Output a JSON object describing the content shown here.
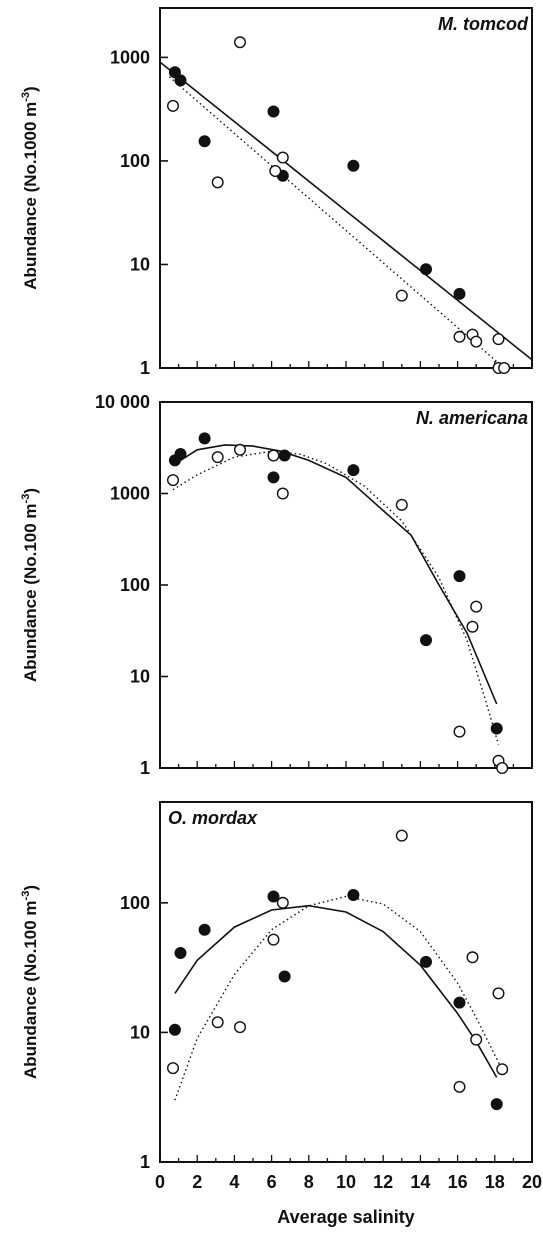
{
  "chart_data": [
    {
      "type": "scatter",
      "title": "M. tomcod",
      "ylabel": "Abundance (No.1000 m",
      "ylabel_sup": "-3",
      "ylabel_close": ")",
      "yscale": "log",
      "ylim": [
        1,
        3000
      ],
      "xlim": [
        0,
        20
      ],
      "y_ticks": [
        {
          "value": 1,
          "label": "1"
        },
        {
          "value": 10,
          "label": "10"
        },
        {
          "value": 100,
          "label": "100"
        },
        {
          "value": 1000,
          "label": "1000"
        }
      ],
      "series": [
        {
          "marker": "filled",
          "points": [
            [
              0.8,
              720
            ],
            [
              1.1,
              600
            ],
            [
              2.4,
              155
            ],
            [
              6.1,
              300
            ],
            [
              6.6,
              72
            ],
            [
              10.4,
              90
            ],
            [
              14.3,
              9
            ],
            [
              16.1,
              5.2
            ]
          ]
        },
        {
          "marker": "open",
          "points": [
            [
              0.7,
              340
            ],
            [
              3.1,
              62
            ],
            [
              4.3,
              1400
            ],
            [
              6.2,
              80
            ],
            [
              6.6,
              108
            ],
            [
              13.0,
              5
            ],
            [
              16.1,
              2
            ],
            [
              16.8,
              2.1
            ],
            [
              17.0,
              1.8
            ],
            [
              18.2,
              1.9
            ],
            [
              18.2,
              1
            ],
            [
              18.5,
              1
            ]
          ]
        }
      ],
      "fits": [
        {
          "style": "solid",
          "points": [
            [
              0,
              900
            ],
            [
              20,
              1.2
            ]
          ]
        },
        {
          "style": "dotted",
          "points": [
            [
              0.5,
              650
            ],
            [
              18.5,
              1
            ]
          ]
        }
      ]
    },
    {
      "type": "scatter",
      "title": "N. americana",
      "ylabel": "Abundance (No.100 m",
      "ylabel_sup": "-3",
      "ylabel_close": ")",
      "yscale": "log",
      "ylim": [
        1,
        10000
      ],
      "xlim": [
        0,
        20
      ],
      "y_ticks": [
        {
          "value": 1,
          "label": "1"
        },
        {
          "value": 10,
          "label": "10"
        },
        {
          "value": 100,
          "label": "100"
        },
        {
          "value": 1000,
          "label": "1000"
        },
        {
          "value": 10000,
          "label": "10 000"
        }
      ],
      "series": [
        {
          "marker": "filled",
          "points": [
            [
              0.8,
              2300
            ],
            [
              1.1,
              2700
            ],
            [
              2.4,
              4000
            ],
            [
              6.1,
              1500
            ],
            [
              6.7,
              2600
            ],
            [
              10.4,
              1800
            ],
            [
              14.3,
              25
            ],
            [
              16.1,
              125
            ],
            [
              18.1,
              2.7
            ]
          ]
        },
        {
          "marker": "open",
          "points": [
            [
              0.7,
              1400
            ],
            [
              3.1,
              2500
            ],
            [
              4.3,
              3000
            ],
            [
              6.1,
              2600
            ],
            [
              6.6,
              1000
            ],
            [
              13.0,
              750
            ],
            [
              16.1,
              2.5
            ],
            [
              16.8,
              35
            ],
            [
              17.0,
              58
            ],
            [
              18.2,
              1.2
            ],
            [
              18.4,
              1
            ]
          ]
        }
      ],
      "fits": [
        {
          "style": "solid",
          "points": [
            [
              0.8,
              2100
            ],
            [
              2,
              3000
            ],
            [
              3.5,
              3400
            ],
            [
              5,
              3300
            ],
            [
              6.5,
              2900
            ],
            [
              8,
              2300
            ],
            [
              10,
              1500
            ],
            [
              12,
              650
            ],
            [
              13.5,
              350
            ],
            [
              15,
              100
            ],
            [
              16.5,
              30
            ],
            [
              18.1,
              5
            ]
          ]
        },
        {
          "style": "dotted",
          "points": [
            [
              0.7,
              1100
            ],
            [
              2,
              1600
            ],
            [
              4,
              2500
            ],
            [
              6,
              2900
            ],
            [
              7.5,
              2700
            ],
            [
              9,
              2100
            ],
            [
              11,
              1200
            ],
            [
              13,
              500
            ],
            [
              15,
              120
            ],
            [
              16.5,
              25
            ],
            [
              17.5,
              5.5
            ],
            [
              18.2,
              1.8
            ]
          ]
        }
      ]
    },
    {
      "type": "scatter",
      "title": "O. mordax",
      "ylabel": "Abundance (No.100 m",
      "ylabel_sup": "-3",
      "ylabel_close": ")",
      "yscale": "log",
      "ylim": [
        1,
        600
      ],
      "xlim": [
        0,
        20
      ],
      "y_ticks": [
        {
          "value": 1,
          "label": "1"
        },
        {
          "value": 10,
          "label": "10"
        },
        {
          "value": 100,
          "label": "100"
        }
      ],
      "x_ticks": [
        {
          "value": 0,
          "label": "0"
        },
        {
          "value": 2,
          "label": "2"
        },
        {
          "value": 4,
          "label": "4"
        },
        {
          "value": 6,
          "label": "6"
        },
        {
          "value": 8,
          "label": "8"
        },
        {
          "value": 10,
          "label": "10"
        },
        {
          "value": 12,
          "label": "12"
        },
        {
          "value": 14,
          "label": "14"
        },
        {
          "value": 16,
          "label": "16"
        },
        {
          "value": 18,
          "label": "18"
        },
        {
          "value": 20,
          "label": "20"
        }
      ],
      "xlabel": "Average salinity",
      "series": [
        {
          "marker": "filled",
          "points": [
            [
              0.8,
              10.5
            ],
            [
              1.1,
              41
            ],
            [
              2.4,
              62
            ],
            [
              6.1,
              112
            ],
            [
              6.7,
              27
            ],
            [
              10.4,
              115
            ],
            [
              14.3,
              35
            ],
            [
              16.1,
              17
            ],
            [
              18.1,
              2.8
            ]
          ]
        },
        {
          "marker": "open",
          "points": [
            [
              0.7,
              5.3
            ],
            [
              3.1,
              12
            ],
            [
              4.3,
              11
            ],
            [
              6.1,
              52
            ],
            [
              6.6,
              100
            ],
            [
              13.0,
              330
            ],
            [
              16.1,
              3.8
            ],
            [
              16.8,
              38
            ],
            [
              17.0,
              8.8
            ],
            [
              18.2,
              20
            ],
            [
              18.4,
              5.2
            ]
          ]
        }
      ],
      "fits": [
        {
          "style": "solid",
          "points": [
            [
              0.8,
              20
            ],
            [
              2,
              36
            ],
            [
              4,
              65
            ],
            [
              6,
              88
            ],
            [
              8,
              95
            ],
            [
              10,
              85
            ],
            [
              12,
              60
            ],
            [
              14,
              33
            ],
            [
              16,
              14
            ],
            [
              17,
              8.5
            ],
            [
              18.1,
              4.5
            ]
          ]
        },
        {
          "style": "dotted",
          "points": [
            [
              0.8,
              3
            ],
            [
              2,
              9
            ],
            [
              4,
              28
            ],
            [
              6,
              62
            ],
            [
              8,
              95
            ],
            [
              10,
              112
            ],
            [
              12,
              98
            ],
            [
              14,
              60
            ],
            [
              16,
              24
            ],
            [
              17,
              13
            ],
            [
              18.3,
              5.5
            ]
          ]
        }
      ]
    }
  ]
}
